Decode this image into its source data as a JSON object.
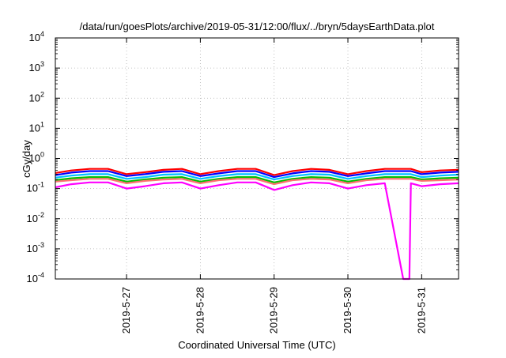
{
  "chart_data": {
    "type": "line",
    "title": "/data/run/goesPlots/archive/2019-05-31/12:00/flux/../bryn/5daysEarthData.plot",
    "xlabel": "Coordinated Universal Time (UTC)",
    "ylabel": "cGy/day",
    "yscale": "log",
    "ylim": [
      0.0001,
      10000
    ],
    "xlim": [
      "2019-05-26T00:50",
      "2019-05-31T12:00"
    ],
    "grid": true,
    "legend": "none",
    "y_ticks": [
      {
        "value": 0.0001,
        "base": "10",
        "exp": "-4"
      },
      {
        "value": 0.001,
        "base": "10",
        "exp": "-3"
      },
      {
        "value": 0.01,
        "base": "10",
        "exp": "-2"
      },
      {
        "value": 0.1,
        "base": "10",
        "exp": "-1"
      },
      {
        "value": 1,
        "base": "10",
        "exp": "0"
      },
      {
        "value": 10,
        "base": "10",
        "exp": "1"
      },
      {
        "value": 100,
        "base": "10",
        "exp": "2"
      },
      {
        "value": 1000,
        "base": "10",
        "exp": "3"
      },
      {
        "value": 10000,
        "base": "10",
        "exp": "4"
      }
    ],
    "x_ticks": [
      "2019-5-27",
      "2019-5-28",
      "2019-5-29",
      "2019-5-30",
      "2019-5-31"
    ],
    "x": [
      "2019-05-26T00:50",
      "2019-05-26T06:00",
      "2019-05-26T12:00",
      "2019-05-26T18:00",
      "2019-05-27T00:00",
      "2019-05-27T06:00",
      "2019-05-27T12:00",
      "2019-05-27T18:00",
      "2019-05-28T00:00",
      "2019-05-28T06:00",
      "2019-05-28T12:00",
      "2019-05-28T18:00",
      "2019-05-29T00:00",
      "2019-05-29T06:00",
      "2019-05-29T12:00",
      "2019-05-29T18:00",
      "2019-05-30T00:00",
      "2019-05-30T06:00",
      "2019-05-30T12:00",
      "2019-05-30T18:00",
      "2019-05-30T20:00",
      "2019-05-30T20:30",
      "2019-05-31T00:00",
      "2019-05-31T06:00",
      "2019-05-31T12:00"
    ],
    "series": [
      {
        "color": "#ff0000",
        "values": [
          0.33,
          0.4,
          0.45,
          0.45,
          0.3,
          0.35,
          0.42,
          0.45,
          0.3,
          0.38,
          0.45,
          0.45,
          0.28,
          0.38,
          0.45,
          0.42,
          0.3,
          0.38,
          0.45,
          0.45,
          0.45,
          0.45,
          0.35,
          0.4,
          0.42
        ]
      },
      {
        "color": "#0000ff",
        "values": [
          0.28,
          0.34,
          0.38,
          0.38,
          0.26,
          0.3,
          0.36,
          0.38,
          0.26,
          0.32,
          0.38,
          0.38,
          0.24,
          0.32,
          0.38,
          0.36,
          0.26,
          0.32,
          0.38,
          0.38,
          0.38,
          0.38,
          0.3,
          0.34,
          0.36
        ]
      },
      {
        "color": "#00c0ff",
        "values": [
          0.23,
          0.27,
          0.3,
          0.3,
          0.21,
          0.24,
          0.29,
          0.3,
          0.21,
          0.26,
          0.3,
          0.3,
          0.2,
          0.26,
          0.3,
          0.29,
          0.21,
          0.26,
          0.3,
          0.3,
          0.3,
          0.3,
          0.24,
          0.27,
          0.29
        ]
      },
      {
        "color": "#00c000",
        "values": [
          0.19,
          0.22,
          0.24,
          0.24,
          0.17,
          0.2,
          0.23,
          0.24,
          0.17,
          0.21,
          0.24,
          0.24,
          0.16,
          0.21,
          0.24,
          0.23,
          0.17,
          0.21,
          0.24,
          0.24,
          0.24,
          0.24,
          0.2,
          0.22,
          0.23
        ]
      },
      {
        "color": "#ff7070",
        "values": [
          0.17,
          0.19,
          0.21,
          0.21,
          0.15,
          0.18,
          0.2,
          0.21,
          0.15,
          0.19,
          0.21,
          0.21,
          0.14,
          0.19,
          0.21,
          0.2,
          0.15,
          0.19,
          0.21,
          0.21,
          0.21,
          0.21,
          0.18,
          0.19,
          0.2
        ]
      },
      {
        "color": "#ff00ff",
        "values": [
          0.11,
          0.14,
          0.16,
          0.16,
          0.1,
          0.12,
          0.15,
          0.16,
          0.1,
          0.13,
          0.16,
          0.16,
          0.09,
          0.13,
          0.16,
          0.15,
          0.1,
          0.13,
          0.15,
          0.0001,
          0.0001,
          0.15,
          0.12,
          0.14,
          0.15
        ]
      }
    ]
  }
}
